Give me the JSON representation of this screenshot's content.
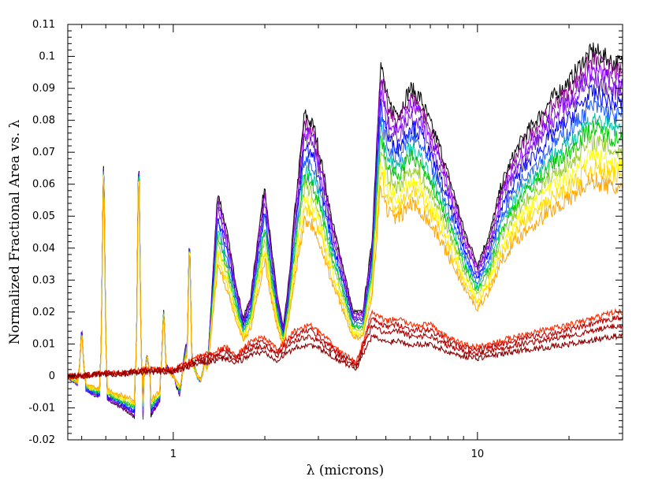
{
  "chart_data": {
    "type": "line",
    "title": "",
    "xlabel": "λ (microns)",
    "ylabel": "Normalized Fractional Area vs. λ",
    "x_scale": "log",
    "xlim": [
      0.45,
      30
    ],
    "ylim": [
      -0.02,
      0.11
    ],
    "x_ticks": [
      {
        "value": 1,
        "label": "1"
      },
      {
        "value": 10,
        "label": "10"
      }
    ],
    "y_ticks": [
      {
        "value": -0.02,
        "label": "-0.02"
      },
      {
        "value": -0.01,
        "label": "-0.01"
      },
      {
        "value": 0,
        "label": "0"
      },
      {
        "value": 0.01,
        "label": "0.01"
      },
      {
        "value": 0.02,
        "label": "0.02"
      },
      {
        "value": 0.03,
        "label": "0.03"
      },
      {
        "value": 0.04,
        "label": "0.04"
      },
      {
        "value": 0.05,
        "label": "0.05"
      },
      {
        "value": 0.06,
        "label": "0.06"
      },
      {
        "value": 0.07,
        "label": "0.07"
      },
      {
        "value": 0.08,
        "label": "0.08"
      },
      {
        "value": 0.09,
        "label": "0.09"
      },
      {
        "value": 0.1,
        "label": "0.1"
      },
      {
        "value": 0.11,
        "label": "0.11"
      }
    ],
    "grid": false,
    "legend": "none",
    "envelope": {
      "x": [
        0.45,
        0.5,
        0.55,
        0.6,
        0.65,
        0.7,
        0.75,
        0.8,
        0.85,
        0.9,
        0.95,
        1.0,
        1.05,
        1.1,
        1.15,
        1.2,
        1.25,
        1.3,
        1.4,
        1.5,
        1.6,
        1.7,
        1.8,
        1.9,
        2.0,
        2.1,
        2.2,
        2.3,
        2.4,
        2.5,
        2.7,
        2.9,
        3.1,
        3.3,
        3.6,
        3.9,
        4.2,
        4.5,
        4.8,
        5.1,
        5.5,
        6.0,
        6.5,
        7.0,
        7.5,
        8.0,
        8.5,
        9.0,
        10.0,
        11.0,
        12.0,
        13.0,
        14.0,
        15.0,
        16.5,
        18.0,
        20.0,
        22.0,
        24.0,
        26.0,
        28.0
      ],
      "y": [
        0.0,
        -0.004,
        -0.006,
        -0.007,
        -0.009,
        -0.011,
        -0.013,
        -0.014,
        -0.012,
        -0.008,
        0.003,
        0.0,
        -0.006,
        0.01,
        0.006,
        0.0,
        -0.003,
        0.005,
        0.058,
        0.045,
        0.03,
        0.018,
        0.025,
        0.044,
        0.06,
        0.04,
        0.025,
        0.015,
        0.03,
        0.05,
        0.082,
        0.078,
        0.065,
        0.05,
        0.035,
        0.02,
        0.02,
        0.042,
        0.098,
        0.085,
        0.082,
        0.09,
        0.087,
        0.079,
        0.072,
        0.063,
        0.055,
        0.046,
        0.035,
        0.045,
        0.06,
        0.068,
        0.074,
        0.078,
        0.083,
        0.088,
        0.092,
        0.098,
        0.102,
        0.1,
        0.098
      ]
    },
    "spikes": [
      {
        "x": 0.5,
        "y": 0.014
      },
      {
        "x": 0.59,
        "y": 0.066
      },
      {
        "x": 0.77,
        "y": 0.067
      },
      {
        "x": 0.82,
        "y": 0.006
      },
      {
        "x": 0.93,
        "y": 0.02
      },
      {
        "x": 1.13,
        "y": 0.042
      },
      {
        "x": 1.27,
        "y": 0.005
      }
    ],
    "series": [
      {
        "scale": 1.0,
        "color": "#000000"
      },
      {
        "scale": 0.97,
        "color": "#800080"
      },
      {
        "scale": 0.94,
        "color": "#8b00ff"
      },
      {
        "scale": 0.91,
        "color": "#7a1fd6"
      },
      {
        "scale": 0.87,
        "color": "#0000ff"
      },
      {
        "scale": 0.83,
        "color": "#1e5bff"
      },
      {
        "scale": 0.79,
        "color": "#00bfa0"
      },
      {
        "scale": 0.76,
        "color": "#00c800"
      },
      {
        "scale": 0.72,
        "color": "#9acd32"
      },
      {
        "scale": 0.68,
        "color": "#ffff00"
      },
      {
        "scale": 0.64,
        "color": "#ffd700"
      },
      {
        "scale": 0.6,
        "color": "#ffa500"
      }
    ],
    "low_series": {
      "x": [
        0.45,
        0.5,
        0.6,
        0.7,
        0.8,
        0.9,
        1.0,
        1.1,
        1.2,
        1.3,
        1.4,
        1.5,
        1.6,
        1.8,
        2.0,
        2.2,
        2.5,
        2.8,
        3.0,
        3.5,
        4.0,
        4.5,
        5.0,
        5.5,
        6.0,
        7.0,
        8.0,
        9.0,
        10.0,
        12.0,
        14.0,
        16.0,
        18.0,
        20.0,
        24.0,
        28.0
      ],
      "y": [
        0.0,
        0.0,
        0.001,
        0.001,
        0.002,
        0.002,
        0.002,
        0.004,
        0.006,
        0.007,
        0.008,
        0.009,
        0.006,
        0.011,
        0.012,
        0.008,
        0.014,
        0.016,
        0.014,
        0.008,
        0.004,
        0.02,
        0.017,
        0.018,
        0.016,
        0.016,
        0.012,
        0.01,
        0.009,
        0.011,
        0.013,
        0.014,
        0.015,
        0.016,
        0.018,
        0.02
      ],
      "lines": [
        {
          "scale": 1.0,
          "color": "#ff2a00"
        },
        {
          "scale": 0.9,
          "color": "#c00000"
        },
        {
          "scale": 0.78,
          "color": "#aa0000"
        },
        {
          "scale": 0.62,
          "color": "#8b0000"
        }
      ]
    }
  }
}
